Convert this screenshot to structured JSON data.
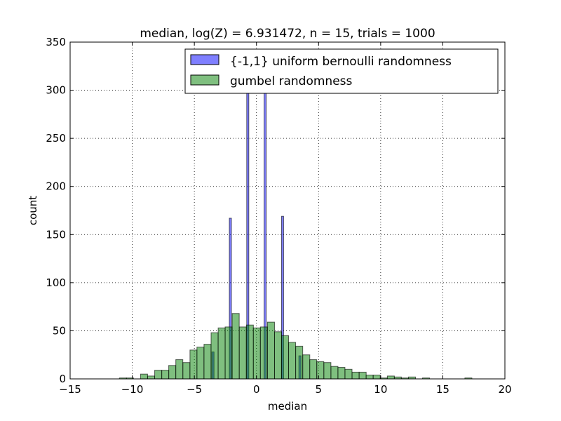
{
  "chart_data": {
    "type": "bar",
    "title": "median, log(Z) = 6.931472, n = 15, trials = 1000",
    "xlabel": "median",
    "ylabel": "count",
    "xlim": [
      -15,
      20
    ],
    "ylim": [
      0,
      350
    ],
    "xticks": [
      -15,
      -10,
      -5,
      0,
      5,
      10,
      15,
      20
    ],
    "yticks": [
      0,
      50,
      100,
      150,
      200,
      250,
      300,
      350
    ],
    "xtick_labels": [
      "−15",
      "−10",
      "−5",
      "0",
      "5",
      "10",
      "15",
      "20"
    ],
    "ytick_labels": [
      "0",
      "50",
      "100",
      "150",
      "200",
      "250",
      "300",
      "350"
    ],
    "grid": true,
    "legend_position": "top-right",
    "series": [
      {
        "name": "{-1,1} uniform bernoulli randomness",
        "color": "#0000ff",
        "alpha": 0.5,
        "bar_width": 0.17,
        "x": [
          -3.5,
          -2.1,
          -0.7,
          0.7,
          2.1,
          3.5
        ],
        "values": [
          28,
          167,
          300,
          300,
          169,
          24
        ]
      },
      {
        "name": "gumbel randomness",
        "color": "#008000",
        "alpha": 0.5,
        "bar_width": 0.567,
        "x": [
          -10.75,
          -10.18,
          -9.61,
          -9.05,
          -8.48,
          -7.91,
          -7.34,
          -6.78,
          -6.21,
          -5.64,
          -5.07,
          -4.51,
          -3.94,
          -3.37,
          -2.8,
          -2.24,
          -1.67,
          -1.1,
          -0.53,
          0.03,
          0.6,
          1.17,
          1.74,
          2.3,
          2.87,
          3.44,
          4.01,
          4.57,
          5.14,
          5.71,
          6.28,
          6.84,
          7.41,
          7.98,
          8.55,
          9.11,
          9.68,
          10.25,
          10.82,
          11.38,
          11.95,
          12.52,
          13.09,
          13.65,
          14.22,
          14.79,
          15.36,
          15.92,
          16.49,
          17.06
        ],
        "values": [
          1,
          1,
          0,
          5,
          3,
          9,
          9,
          14,
          20,
          17,
          30,
          33,
          36,
          48,
          53,
          54,
          68,
          54,
          56,
          53,
          54,
          59,
          49,
          45,
          38,
          34,
          25,
          20,
          18,
          17,
          13,
          12,
          10,
          7,
          7,
          4,
          4,
          1,
          3,
          2,
          1,
          2,
          0,
          1,
          0,
          0,
          0,
          0,
          0,
          1
        ]
      }
    ]
  }
}
